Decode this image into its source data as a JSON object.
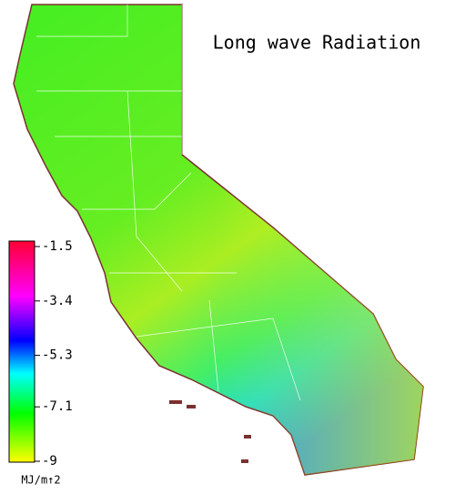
{
  "title": "Long wave Radiation",
  "colorbar": {
    "lim": [
      -9.0,
      -1.5
    ],
    "ticks": [
      -1.5,
      -3.4,
      -5.3,
      -7.1,
      -9.0
    ],
    "unit": "MJ/m↑2"
  }
}
